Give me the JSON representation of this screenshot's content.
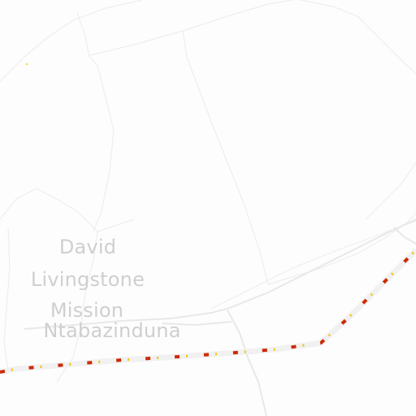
{
  "map": {
    "place_label": {
      "line1": "David",
      "line2": "Livingstone",
      "line3": "Mission",
      "line4": "Ntabazinduna"
    },
    "colors": {
      "background": "#fdfdfd",
      "boundary": "#eeeeee",
      "minor_road": "#e8e8e8",
      "railway_dash_red": "#cc2a00",
      "railway_dash_yellow": "#f5c400",
      "railway_casing": "#f1f1f1",
      "label_text": "#cfcfcf"
    }
  }
}
